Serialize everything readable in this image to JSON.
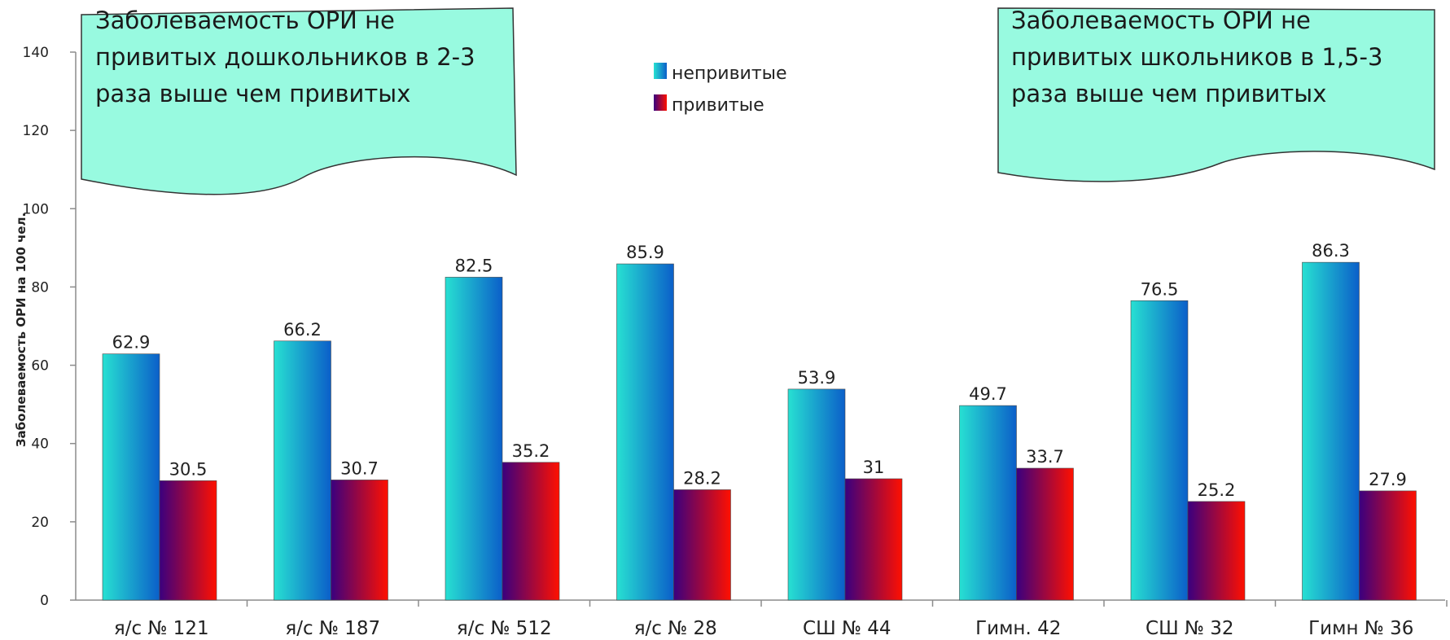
{
  "chart_data": {
    "type": "bar",
    "ylabel": "Заболеваемость ОРИ на 100 чел.",
    "ylim": [
      0,
      140
    ],
    "yticks": [
      0,
      20,
      40,
      60,
      80,
      100,
      120,
      140
    ],
    "categories": [
      "я/с № 121",
      "я/с № 187",
      "я/с № 512",
      "я/с № 28",
      "СШ № 44",
      "Гимн. 42",
      "СШ № 32",
      "Гимн № 36"
    ],
    "series": [
      {
        "name": "непривитые",
        "values": [
          62.9,
          66.2,
          82.5,
          85.9,
          53.9,
          49.7,
          76.5,
          86.3
        ],
        "labels": [
          "62.9",
          "66.2",
          "82.5",
          "85.9",
          "53.9",
          "49.7",
          "76.5",
          "86.3"
        ]
      },
      {
        "name": "привитые",
        "values": [
          30.5,
          30.7,
          35.2,
          28.2,
          31,
          33.7,
          25.2,
          27.9
        ],
        "labels": [
          "30.5",
          "30.7",
          "35.2",
          "28.2",
          "31",
          "33.7",
          "25.2",
          "27.9"
        ]
      }
    ],
    "legend_position": "top-center",
    "grid": false,
    "colors": {
      "unvaccinated": [
        "#27e0d2",
        "#0b5fc9"
      ],
      "vaccinated": [
        "#3a007f",
        "#ff1000"
      ]
    },
    "annotations": [
      {
        "lines": [
          "Заболеваемость  ОРИ  не",
          "привитых дошкольников в 2-3",
          "раза выше чем привитых"
        ],
        "fill": "#98fae0"
      },
      {
        "lines": [
          "Заболеваемость  ОРИ  не",
          "привитых школьников в 1,5-3",
          "раза выше чем привитых"
        ],
        "fill": "#98fae0"
      }
    ]
  }
}
